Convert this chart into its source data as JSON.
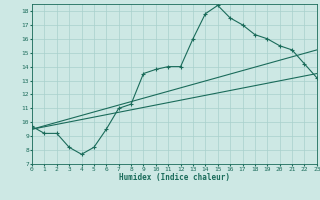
{
  "title": "",
  "xlabel": "Humidex (Indice chaleur)",
  "xlim": [
    0,
    23
  ],
  "ylim": [
    7,
    18.5
  ],
  "yticks": [
    7,
    8,
    9,
    10,
    11,
    12,
    13,
    14,
    15,
    16,
    17,
    18
  ],
  "xticks": [
    0,
    1,
    2,
    3,
    4,
    5,
    6,
    7,
    8,
    9,
    10,
    11,
    12,
    13,
    14,
    15,
    16,
    17,
    18,
    19,
    20,
    21,
    22,
    23
  ],
  "bg_color": "#cde8e4",
  "grid_color": "#a8d0cc",
  "line_color": "#1a6b5a",
  "main_curve_x": [
    0,
    1,
    2,
    3,
    4,
    5,
    6,
    7,
    8,
    9,
    10,
    11,
    12,
    13,
    14,
    15,
    16,
    17,
    18,
    19,
    20,
    21,
    22,
    23
  ],
  "main_curve_y": [
    9.7,
    9.2,
    9.2,
    8.2,
    7.7,
    8.2,
    9.5,
    11.0,
    11.3,
    13.5,
    13.8,
    14.0,
    14.0,
    16.0,
    17.8,
    18.4,
    17.5,
    17.0,
    16.3,
    16.0,
    15.5,
    15.2,
    14.2,
    13.2
  ],
  "trend1_x": [
    0,
    23
  ],
  "trend1_y": [
    9.5,
    13.5
  ],
  "trend2_x": [
    0,
    23
  ],
  "trend2_y": [
    9.5,
    15.2
  ]
}
